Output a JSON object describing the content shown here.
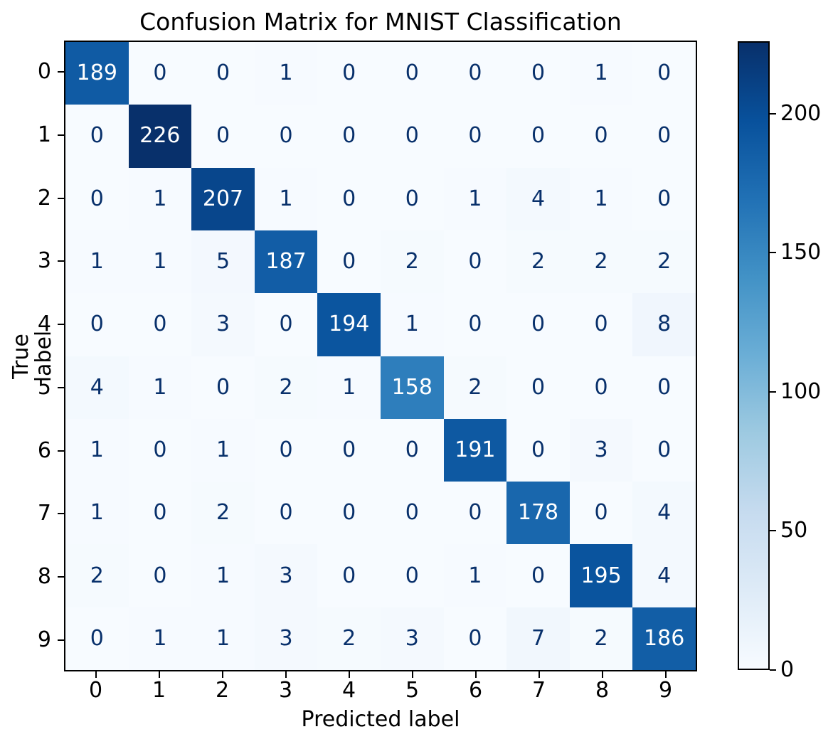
{
  "chart_data": {
    "type": "heatmap",
    "title": "Confusion Matrix for MNIST Classification",
    "xlabel": "Predicted label",
    "ylabel": "True label",
    "x_tick_labels": [
      "0",
      "1",
      "2",
      "3",
      "4",
      "5",
      "6",
      "7",
      "8",
      "9"
    ],
    "y_tick_labels": [
      "0",
      "1",
      "2",
      "3",
      "4",
      "5",
      "6",
      "7",
      "8",
      "9"
    ],
    "matrix": [
      [
        189,
        0,
        0,
        1,
        0,
        0,
        0,
        0,
        1,
        0
      ],
      [
        0,
        226,
        0,
        0,
        0,
        0,
        0,
        0,
        0,
        0
      ],
      [
        0,
        1,
        207,
        1,
        0,
        0,
        1,
        4,
        1,
        0
      ],
      [
        1,
        1,
        5,
        187,
        0,
        2,
        0,
        2,
        2,
        2
      ],
      [
        0,
        0,
        3,
        0,
        194,
        1,
        0,
        0,
        0,
        8
      ],
      [
        4,
        1,
        0,
        2,
        1,
        158,
        2,
        0,
        0,
        0
      ],
      [
        1,
        0,
        1,
        0,
        0,
        0,
        191,
        0,
        3,
        0
      ],
      [
        1,
        0,
        2,
        0,
        0,
        0,
        0,
        178,
        0,
        4
      ],
      [
        2,
        0,
        1,
        3,
        0,
        0,
        1,
        0,
        195,
        4
      ],
      [
        0,
        1,
        1,
        3,
        2,
        3,
        0,
        7,
        2,
        186
      ]
    ],
    "vmin": 0,
    "vmax": 226,
    "colormap_name": "Blues",
    "colormap_stops": [
      "#f7fbff",
      "#deebf7",
      "#c6dbef",
      "#9ecae1",
      "#6baed6",
      "#4292c6",
      "#2171b5",
      "#08519c",
      "#08306b"
    ],
    "colorbar_ticks": [
      0,
      50,
      100,
      150,
      200
    ],
    "colorbar_position": "right",
    "grid": false,
    "colors": {
      "cell_text_dark": "#08306b",
      "cell_text_light": "#ffffff",
      "spine": "#000000",
      "background": "#ffffff"
    }
  }
}
